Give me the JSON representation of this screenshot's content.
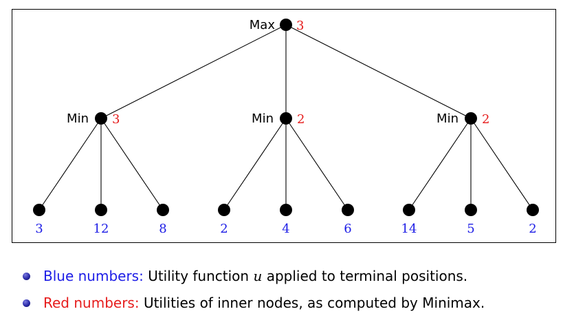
{
  "tree": {
    "root": {
      "label": "Max",
      "value": "3"
    },
    "level1": [
      {
        "label": "Min",
        "value": "3",
        "leaves": [
          "3",
          "12",
          "8"
        ]
      },
      {
        "label": "Min",
        "value": "2",
        "leaves": [
          "2",
          "4",
          "6"
        ]
      },
      {
        "label": "Min",
        "value": "2",
        "leaves": [
          "14",
          "5",
          "2"
        ]
      }
    ]
  },
  "legend": {
    "blue": {
      "title": "Blue numbers:",
      "pre": "Utility function",
      "var": "u",
      "post": "applied to terminal positions."
    },
    "red": {
      "title": "Red numbers:",
      "text": "Utilities of inner nodes, as computed by Minimax."
    }
  },
  "colors": {
    "blue": "#1c1ce6",
    "red": "#e61c1c",
    "node": "#000000",
    "bullet": "#2a2aa8"
  }
}
